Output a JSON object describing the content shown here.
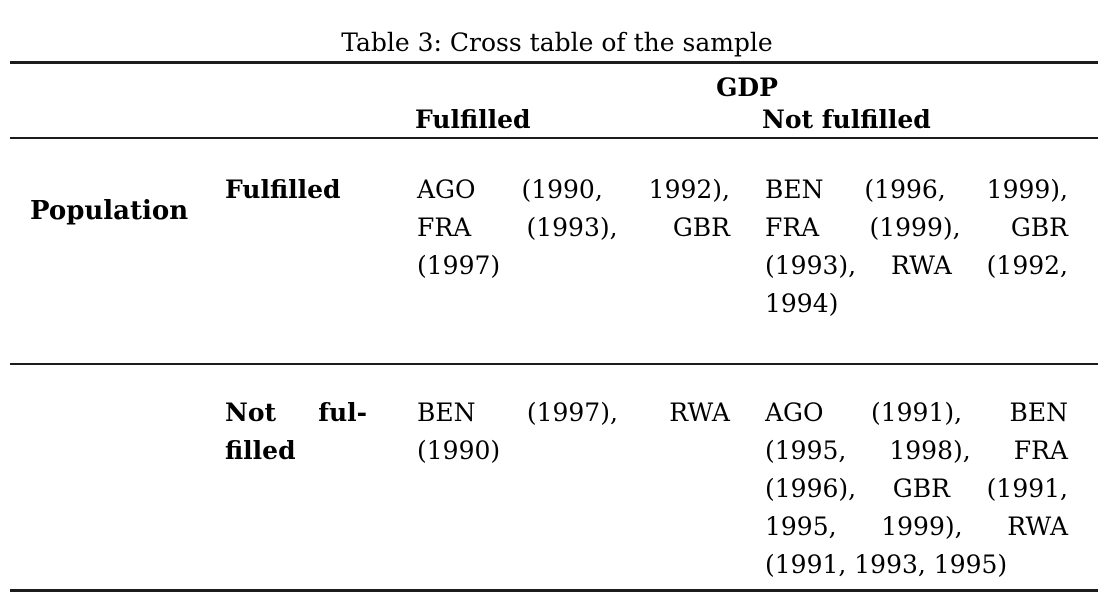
{
  "page": {
    "background_color": "#ffffff",
    "text_color": "#000000",
    "rule_color": "#1c1c1c"
  },
  "title": "Table 3: Cross table of the sample",
  "table": {
    "column_group_header": "GDP",
    "column_headers": {
      "fulfilled": "Fulfilled",
      "not_fulfilled": "Not fulfilled"
    },
    "row_group_header": "Population",
    "rows": [
      {
        "label": {
          "text": "Fulfilled",
          "lines": [
            {
              "text": "Fulfilled",
              "justify": false
            }
          ]
        },
        "gdp_fulfilled": {
          "text": "AGO (1990, 1992), FRA (1993), GBR (1997)",
          "lines": [
            {
              "text": "AGO (1990, 1992),",
              "justify": true
            },
            {
              "text": "FRA (1993), GBR",
              "justify": true
            },
            {
              "text": "(1997)",
              "justify": false
            }
          ]
        },
        "gdp_not_fulfilled": {
          "text": "BEN (1996, 1999), FRA (1999), GBR (1993), RWA (1992, 1994)",
          "lines": [
            {
              "text": "BEN (1996, 1999),",
              "justify": true
            },
            {
              "text": "FRA (1999), GBR",
              "justify": true
            },
            {
              "text": "(1993), RWA (1992,",
              "justify": true
            },
            {
              "text": "1994)",
              "justify": false
            }
          ]
        }
      },
      {
        "label": {
          "text": "Not fulfilled",
          "lines": [
            {
              "text": "Not ful-",
              "justify": true
            },
            {
              "text": "filled",
              "justify": false
            }
          ]
        },
        "gdp_fulfilled": {
          "text": "BEN (1997), RWA (1990)",
          "lines": [
            {
              "text": "BEN (1997), RWA",
              "justify": true
            },
            {
              "text": "(1990)",
              "justify": false
            }
          ]
        },
        "gdp_not_fulfilled": {
          "text": "AGO (1991), BEN (1995, 1998), FRA (1996), GBR (1991, 1995, 1999), RWA (1991, 1993, 1995)",
          "lines": [
            {
              "text": "AGO (1991), BEN",
              "justify": true
            },
            {
              "text": "(1995, 1998), FRA",
              "justify": true
            },
            {
              "text": "(1996), GBR (1991,",
              "justify": true
            },
            {
              "text": "1995, 1999), RWA",
              "justify": true
            },
            {
              "text": "(1991, 1993, 1995)",
              "justify": false
            }
          ]
        }
      }
    ]
  }
}
